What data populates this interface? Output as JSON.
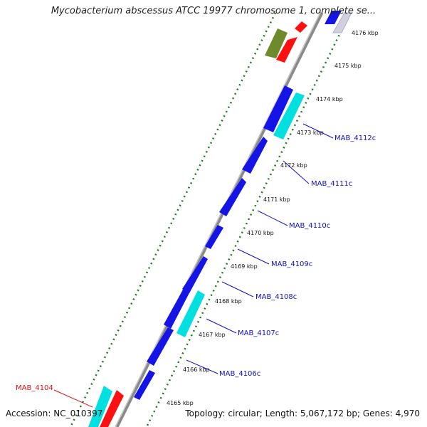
{
  "title": "Mycobacterium abscessus ATCC 19977 chromosome 1, complete se...",
  "accession": "Accession: NC_010397",
  "topology": "Topology: circular; Length: 5,067,172 bp; Genes: 4,970",
  "colors": {
    "backbone": "#8a8a8a",
    "ticks": "#1a7a1a",
    "forward_gene": "#1414e6",
    "cds_alt": "#00e0e0",
    "rna": "#ff1010",
    "olive": "#6f8a2a",
    "label_blue": "#1010c8",
    "label_red": "#e01010"
  },
  "ticks": [
    "4165 kbp",
    "4166 kbp",
    "4167 kbp",
    "4168 kbp",
    "4169 kbp",
    "4170 kbp",
    "4171 kbp",
    "4172 kbp",
    "4173 kbp",
    "4174 kbp",
    "4175 kbp",
    "4176 kbp"
  ],
  "gene_labels": [
    {
      "text": "MAB_4112c",
      "color": "label_blue"
    },
    {
      "text": "MAB_4111c",
      "color": "label_blue"
    },
    {
      "text": "MAB_4110c",
      "color": "label_blue"
    },
    {
      "text": "MAB_4109c",
      "color": "label_blue"
    },
    {
      "text": "MAB_4108c",
      "color": "label_blue"
    },
    {
      "text": "MAB_4107c",
      "color": "label_blue"
    },
    {
      "text": "MAB_4106c",
      "color": "label_blue"
    },
    {
      "text": "MAB_4104",
      "color": "label_red"
    }
  ]
}
